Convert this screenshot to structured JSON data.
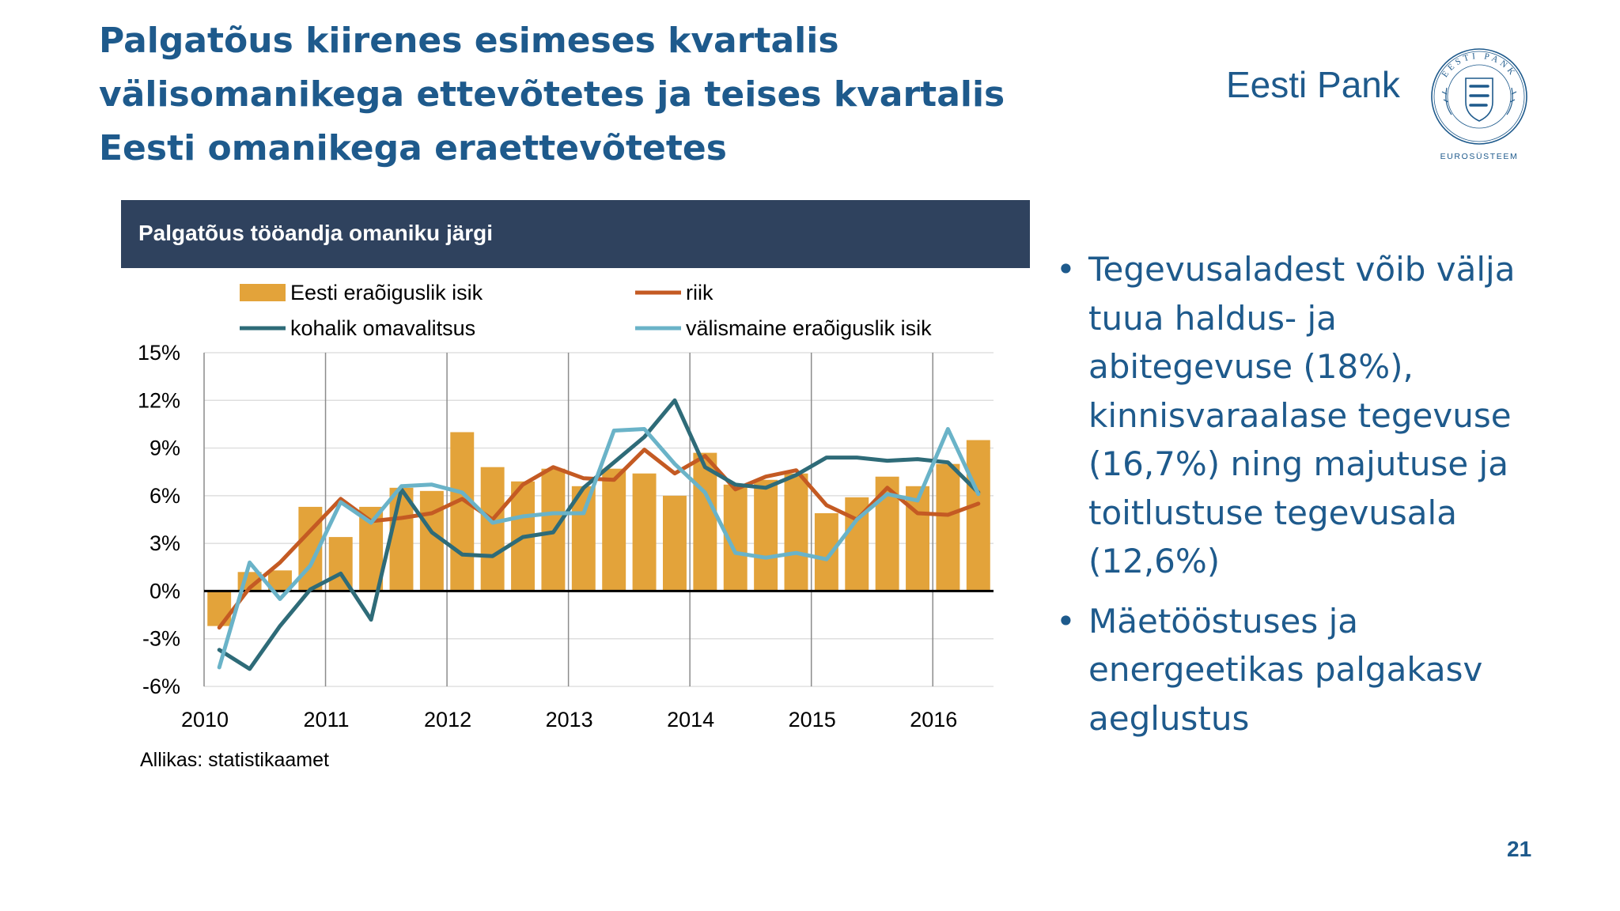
{
  "slide": {
    "title_lines": [
      "Palgatõus kiirenes esimeses kvartalis",
      "välisomanikega ettevõtetes ja teises kvartalis",
      "Eesti omanikega eraettevõtetes"
    ],
    "brand": "Eesti Pank",
    "seal": {
      "text_top": "EESTI PANK",
      "text_bottom": "EUROSÜSTEEM"
    },
    "page_number": "21"
  },
  "bullets": [
    [
      "Tegevusaladest võib välja",
      "tuua haldus- ja",
      "abitegevuse (18%),",
      "kinnisvaraalase tegevuse",
      "(16,7%) ning majutuse ja",
      "toitlustuse tegevusala",
      "(12,6%)"
    ],
    [
      "Mäetööstuses ja",
      "energeetikas palgakasv",
      "aeglustus"
    ]
  ],
  "colors": {
    "title": "#1e5a8c",
    "header_bg": "#2f425e",
    "bars": "#e3a33a",
    "riik": "#c45a23",
    "kohalik": "#2e6b78",
    "valismaine": "#6ab3c8"
  },
  "chart_data": {
    "type": "bar+line",
    "title": "Palgatõus tööandja omaniku järgi",
    "source": "Allikas: statistikaamet",
    "ylim": [
      -6,
      15
    ],
    "yticks": [
      15,
      12,
      9,
      6,
      3,
      0,
      -3,
      -6
    ],
    "ytick_labels": [
      "15%",
      "12%",
      "9%",
      "6%",
      "3%",
      "0%",
      "-3%",
      "-6%"
    ],
    "x_labels": [
      "2010",
      "2011",
      "2012",
      "2013",
      "2014",
      "2015",
      "2016"
    ],
    "quarters_per_year": 4,
    "grid": true,
    "legend_position": "top",
    "bar_series": {
      "name": "Eesti eraõiguslik isik",
      "values": [
        -2.2,
        1.2,
        1.3,
        5.3,
        3.4,
        5.3,
        6.5,
        6.3,
        10.0,
        7.8,
        6.9,
        7.7,
        6.6,
        7.7,
        7.4,
        6.0,
        8.7,
        6.7,
        7.0,
        7.4,
        4.9,
        5.9,
        7.2,
        6.6,
        8.0,
        9.5
      ]
    },
    "series": [
      {
        "name": "riik",
        "values": [
          -2.3,
          0.2,
          1.8,
          3.8,
          5.8,
          4.4,
          4.6,
          4.9,
          5.8,
          4.5,
          6.7,
          7.8,
          7.1,
          7.0,
          8.9,
          7.4,
          8.5,
          6.4,
          7.2,
          7.6,
          5.4,
          4.5,
          6.5,
          4.9,
          4.8,
          5.5
        ]
      },
      {
        "name": "kohalik omavalitsus",
        "values": [
          -3.7,
          -4.9,
          -2.2,
          0.1,
          1.1,
          -1.8,
          6.4,
          3.7,
          2.3,
          2.2,
          3.4,
          3.7,
          6.5,
          8.1,
          9.7,
          12.0,
          7.8,
          6.7,
          6.5,
          7.3,
          8.4,
          8.4,
          8.2,
          8.3,
          8.1,
          6.2
        ]
      },
      {
        "name": "välismaine eraõiguslik isik",
        "values": [
          -4.8,
          1.8,
          -0.5,
          1.6,
          5.6,
          4.3,
          6.6,
          6.7,
          6.2,
          4.3,
          4.7,
          4.9,
          4.9,
          10.1,
          10.2,
          8.0,
          6.2,
          2.4,
          2.1,
          2.4,
          2.0,
          4.5,
          6.1,
          5.7,
          10.2,
          6.1
        ]
      }
    ]
  }
}
